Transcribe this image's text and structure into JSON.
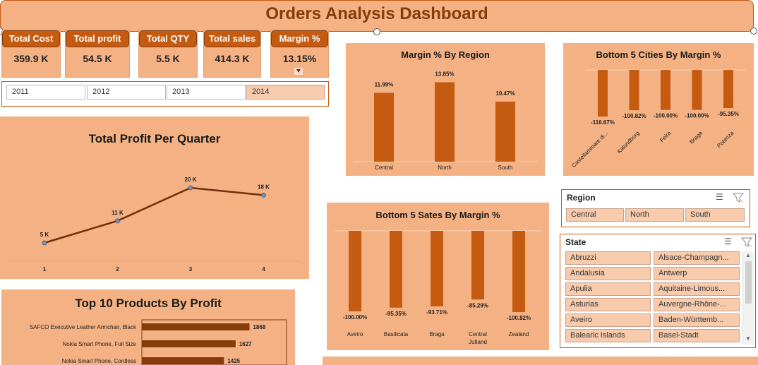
{
  "title": "Orders Analysis Dashboard",
  "kpis": [
    {
      "label": "Total Cost",
      "value": "359.9 K"
    },
    {
      "label": "Total profit",
      "value": "54.5 K"
    },
    {
      "label": "Total QTY",
      "value": "5.5 K"
    },
    {
      "label": "Total sales",
      "value": "414.3 K"
    },
    {
      "label": "Margin %",
      "value": "13.15%"
    }
  ],
  "years": [
    "2011",
    "2012",
    "2013",
    "2014"
  ],
  "selected_year": "2014",
  "colors": {
    "accent": "#c55a11",
    "panel": "#f4b183",
    "button": "#f8cbad",
    "title": "#843c0c",
    "bar_dark": "#843c0c"
  },
  "charts": {
    "profit_quarter": {
      "title": "Total Profit Per Quarter",
      "chart_data": {
        "type": "line",
        "x": [
          "1",
          "2",
          "3",
          "4"
        ],
        "values": [
          5,
          11,
          20,
          18
        ],
        "labels": [
          "5 K",
          "11 K",
          "20 K",
          "18 K"
        ]
      }
    },
    "margin_region": {
      "title": "Margin % By Region",
      "chart_data": {
        "type": "bar",
        "categories": [
          "Central",
          "North",
          "South"
        ],
        "values": [
          11.99,
          13.85,
          10.47
        ],
        "labels": [
          "11.99%",
          "13.85%",
          "10.47%"
        ]
      }
    },
    "bottom_cities": {
      "title": "Bottom 5 Cities By Margin %",
      "chart_data": {
        "type": "bar",
        "categories": [
          "Castellammare di...",
          "Kalundborg",
          "Feira",
          "Braga",
          "Potenza"
        ],
        "values": [
          -116.67,
          -100.82,
          -100.0,
          -100.0,
          -95.35
        ],
        "labels": [
          "-116.67%",
          "-100.82%",
          "-100.00%",
          "-100.00%",
          "-95.35%"
        ]
      }
    },
    "bottom_states": {
      "title": "Bottom 5 Sates By Margin %",
      "chart_data": {
        "type": "bar",
        "categories": [
          "Aveiro",
          "Basilicata",
          "Braga",
          "Central Jutland",
          "Zealand"
        ],
        "values": [
          -100.0,
          -95.35,
          -93.71,
          -85.29,
          -100.82
        ],
        "labels": [
          "-100.00%",
          "-95.35%",
          "-93.71%",
          "-85.29%",
          "-100.82%"
        ]
      }
    },
    "top_products": {
      "title": "Top 10 Products By Profit",
      "chart_data": {
        "type": "bar",
        "categories": [
          "SAFCO Executive Leather Armchair, Black",
          "Nokia Smart Phone, Full Size",
          "Nokia Smart Phone, Cordless"
        ],
        "values": [
          1868,
          1627,
          1425
        ],
        "labels": [
          "1868",
          "1627",
          "1425"
        ]
      }
    }
  },
  "region_slicer": {
    "title": "Region",
    "items": [
      "Central",
      "North",
      "South"
    ]
  },
  "state_slicer": {
    "title": "State",
    "items": [
      "Abruzzi",
      "Alsace-Champagn...",
      "Andalusía",
      "Antwerp",
      "Apulia",
      "Aquitaine-Limous...",
      "Asturias",
      "Auvergne-Rhône-...",
      "Aveiro",
      "Baden-Württemb...",
      "Balearic Islands",
      "Basel-Stadt"
    ]
  }
}
